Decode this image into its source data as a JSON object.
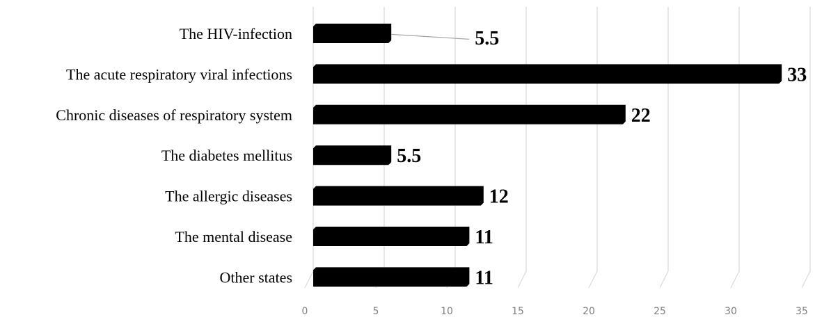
{
  "chart_data": {
    "type": "bar",
    "orientation": "horizontal",
    "categories": [
      "The HIV-infection",
      "The acute respiratory viral infections",
      "Chronic diseases of respiratory system",
      "The diabetes mellitus",
      "The allergic diseases",
      "The mental disease",
      "Other states"
    ],
    "values": [
      5.5,
      33,
      22,
      5.5,
      12,
      11,
      11
    ],
    "data_labels": [
      "5.5",
      "33",
      "22",
      "5.5",
      "12",
      "11",
      "11"
    ],
    "xlim": [
      0,
      35
    ],
    "x_ticks": [
      0,
      5,
      10,
      15,
      20,
      25,
      30,
      35
    ],
    "x_tick_labels": [
      "0",
      "5",
      "10",
      "15",
      "20",
      "25",
      "30",
      "35"
    ],
    "title": "",
    "xlabel": "",
    "ylabel": "",
    "grid": true,
    "legend": "none",
    "style": "3d",
    "colors": {
      "bar": "#000000",
      "grid": "#d9d9d9",
      "tick_text": "#7f7f7f",
      "leader_line": "#a6a6a6"
    }
  }
}
